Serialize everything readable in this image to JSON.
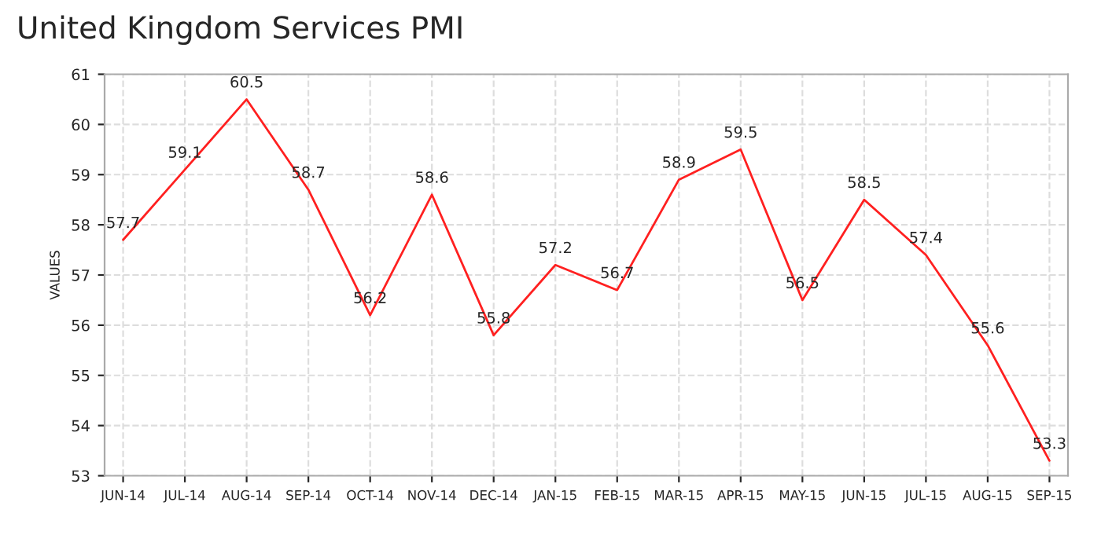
{
  "chart_data": {
    "type": "line",
    "title": "United Kingdom Services PMI",
    "ylabel": "VALUES",
    "categories": [
      "JUN-14",
      "JUL-14",
      "AUG-14",
      "SEP-14",
      "OCT-14",
      "NOV-14",
      "DEC-14",
      "JAN-15",
      "FEB-15",
      "MAR-15",
      "APR-15",
      "MAY-15",
      "JUN-15",
      "JUL-15",
      "AUG-15",
      "SEP-15"
    ],
    "series": [
      {
        "color": "#ff2020",
        "values": [
          57.7,
          59.1,
          60.5,
          58.7,
          56.2,
          58.6,
          55.8,
          57.2,
          56.7,
          58.9,
          59.5,
          56.5,
          58.5,
          57.4,
          55.6,
          53.3
        ]
      }
    ],
    "ylim": [
      53,
      61
    ],
    "yticks": [
      53,
      54,
      55,
      56,
      57,
      58,
      59,
      60,
      61
    ],
    "grid": true,
    "data_labels": true,
    "marker": "none",
    "line_style": "solid"
  }
}
